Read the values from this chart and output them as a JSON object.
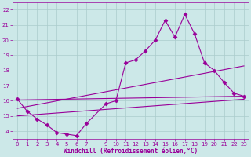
{
  "xlabel": "Windchill (Refroidissement éolien,°C)",
  "bg_color": "#cce8e8",
  "grid_color": "#aacccc",
  "line_color": "#990099",
  "xlim": [
    -0.5,
    23.5
  ],
  "ylim": [
    13.5,
    22.5
  ],
  "yticks": [
    14,
    15,
    16,
    17,
    18,
    19,
    20,
    21,
    22
  ],
  "xticks": [
    0,
    1,
    2,
    3,
    4,
    5,
    6,
    7,
    9,
    10,
    11,
    12,
    13,
    14,
    15,
    16,
    17,
    18,
    19,
    20,
    21,
    22,
    23
  ],
  "main_line_x": [
    0,
    1,
    2,
    3,
    4,
    5,
    6,
    7,
    9,
    10,
    11,
    12,
    13,
    14,
    15,
    16,
    17,
    18,
    19,
    20,
    21,
    22,
    23
  ],
  "main_line_y": [
    16.1,
    15.3,
    14.8,
    14.4,
    13.9,
    13.8,
    13.7,
    14.5,
    15.8,
    16.0,
    18.5,
    18.7,
    19.3,
    20.0,
    21.3,
    20.2,
    21.7,
    20.4,
    18.5,
    18.0,
    17.2,
    16.5,
    16.3
  ],
  "line2_x": [
    0,
    23
  ],
  "line2_y": [
    16.05,
    16.3
  ],
  "line3_x": [
    0,
    23
  ],
  "line3_y": [
    15.5,
    18.3
  ],
  "line4_x": [
    0,
    23
  ],
  "line4_y": [
    15.0,
    16.1
  ]
}
